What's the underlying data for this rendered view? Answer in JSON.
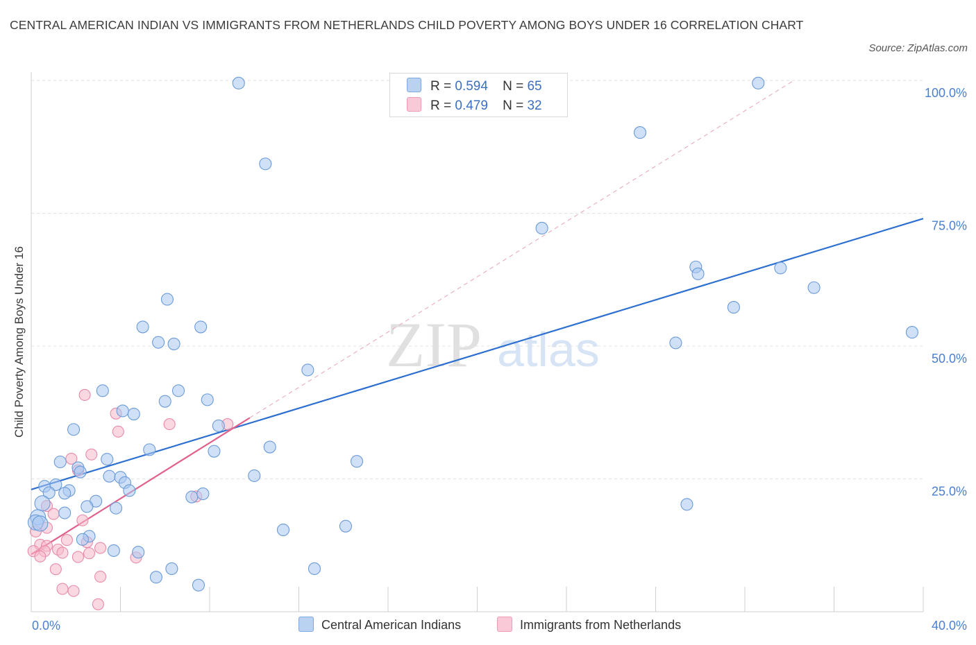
{
  "title": "CENTRAL AMERICAN INDIAN VS IMMIGRANTS FROM NETHERLANDS CHILD POVERTY AMONG BOYS UNDER 16 CORRELATION CHART",
  "source": "Source: ZipAtlas.com",
  "watermark": {
    "zip": "ZIP",
    "atlas": "atlas"
  },
  "legend": {
    "r_label": "R =",
    "n_label": "N =",
    "series1": {
      "r": "0.594",
      "n": "65"
    },
    "series2": {
      "r": "0.479",
      "n": "32"
    }
  },
  "bottom_legend": {
    "series1": "Central American Indians",
    "series2": "Immigrants from Netherlands"
  },
  "colors": {
    "blue_fill": "#a9c8f0",
    "blue_stroke": "#6a9ad8",
    "blue_line": "#2c6fd1",
    "pink_fill": "#f6b8cb",
    "pink_stroke": "#e88aa8",
    "pink_line": "#e0608a",
    "axis_text": "#4a7fd0",
    "grid": "#e2e2e2"
  },
  "chart_data": {
    "type": "scatter",
    "ylabel": "Child Poverty Among Boys Under 16",
    "xlim": [
      0,
      40
    ],
    "ylim": [
      0,
      100
    ],
    "x_tick_labels": [
      "0.0%",
      "40.0%"
    ],
    "y_ticks": [
      25,
      50,
      75,
      100
    ],
    "y_tick_labels": [
      "25.0%",
      "50.0%",
      "75.0%",
      "100.0%"
    ],
    "grid": true,
    "series": [
      {
        "name": "Central American Indians",
        "color": "#a9c8f0",
        "points": [
          [
            9.3,
            99.5
          ],
          [
            32.6,
            99.5
          ],
          [
            10.5,
            84.3
          ],
          [
            27.3,
            90.2
          ],
          [
            22.9,
            72.2
          ],
          [
            29.8,
            64.9
          ],
          [
            29.9,
            63.6
          ],
          [
            33.6,
            64.7
          ],
          [
            35.1,
            61.0
          ],
          [
            39.5,
            52.6
          ],
          [
            31.5,
            57.3
          ],
          [
            28.9,
            50.6
          ],
          [
            6.1,
            58.8
          ],
          [
            5.0,
            53.6
          ],
          [
            7.6,
            53.6
          ],
          [
            5.7,
            50.7
          ],
          [
            6.4,
            50.4
          ],
          [
            12.4,
            45.5
          ],
          [
            3.2,
            41.6
          ],
          [
            6.6,
            41.6
          ],
          [
            6.0,
            39.6
          ],
          [
            7.9,
            39.9
          ],
          [
            4.1,
            37.8
          ],
          [
            4.6,
            37.2
          ],
          [
            1.9,
            34.3
          ],
          [
            8.4,
            35.0
          ],
          [
            10.7,
            31.0
          ],
          [
            5.3,
            30.5
          ],
          [
            8.2,
            30.2
          ],
          [
            3.4,
            28.7
          ],
          [
            1.3,
            28.2
          ],
          [
            14.6,
            28.3
          ],
          [
            2.1,
            27.1
          ],
          [
            2.2,
            26.3
          ],
          [
            3.5,
            25.5
          ],
          [
            4.0,
            25.3
          ],
          [
            10.0,
            25.6
          ],
          [
            4.2,
            24.3
          ],
          [
            0.6,
            23.6
          ],
          [
            1.1,
            23.9
          ],
          [
            0.8,
            22.4
          ],
          [
            1.7,
            22.8
          ],
          [
            1.5,
            22.3
          ],
          [
            4.4,
            22.8
          ],
          [
            7.2,
            21.6
          ],
          [
            7.7,
            22.2
          ],
          [
            0.5,
            20.4
          ],
          [
            2.9,
            20.8
          ],
          [
            2.5,
            19.8
          ],
          [
            3.8,
            19.5
          ],
          [
            1.5,
            18.6
          ],
          [
            0.3,
            17.8
          ],
          [
            0.2,
            16.8
          ],
          [
            29.4,
            20.2
          ],
          [
            14.1,
            16.1
          ],
          [
            11.3,
            15.4
          ],
          [
            2.6,
            14.2
          ],
          [
            2.3,
            13.6
          ],
          [
            3.7,
            11.5
          ],
          [
            4.8,
            11.2
          ],
          [
            6.3,
            8.1
          ],
          [
            5.6,
            6.5
          ],
          [
            12.7,
            8.1
          ],
          [
            7.5,
            5.0
          ],
          [
            0.4,
            16.6
          ]
        ]
      },
      {
        "name": "Immigrants from Netherlands",
        "color": "#f6b8cb",
        "points": [
          [
            2.4,
            40.8
          ],
          [
            3.8,
            37.3
          ],
          [
            6.2,
            35.3
          ],
          [
            3.9,
            33.9
          ],
          [
            8.8,
            35.3
          ],
          [
            2.7,
            29.6
          ],
          [
            1.8,
            28.8
          ],
          [
            2.1,
            26.6
          ],
          [
            7.4,
            21.7
          ],
          [
            0.7,
            19.9
          ],
          [
            1.0,
            18.4
          ],
          [
            2.3,
            17.2
          ],
          [
            0.7,
            15.8
          ],
          [
            0.2,
            15.1
          ],
          [
            1.6,
            13.5
          ],
          [
            2.5,
            13.1
          ],
          [
            0.4,
            12.6
          ],
          [
            0.7,
            12.4
          ],
          [
            0.1,
            11.4
          ],
          [
            0.6,
            11.4
          ],
          [
            1.2,
            11.7
          ],
          [
            1.4,
            11.1
          ],
          [
            3.1,
            12.0
          ],
          [
            2.6,
            11.0
          ],
          [
            4.7,
            10.2
          ],
          [
            0.4,
            10.4
          ],
          [
            2.1,
            10.3
          ],
          [
            1.1,
            8.0
          ],
          [
            3.1,
            6.6
          ],
          [
            1.4,
            4.3
          ],
          [
            1.9,
            3.9
          ],
          [
            3.0,
            1.4
          ]
        ]
      }
    ],
    "trendlines": [
      {
        "series": "Central American Indians",
        "x": [
          0,
          40
        ],
        "y": [
          23.0,
          74.0
        ]
      },
      {
        "series": "Immigrants from Netherlands",
        "x": [
          0,
          9.8
        ],
        "y": [
          10.8,
          36.5
        ]
      },
      {
        "series": "Immigrants from Netherlands (extension)",
        "x": [
          9.8,
          34.2
        ],
        "y": [
          36.5,
          100
        ]
      }
    ]
  }
}
